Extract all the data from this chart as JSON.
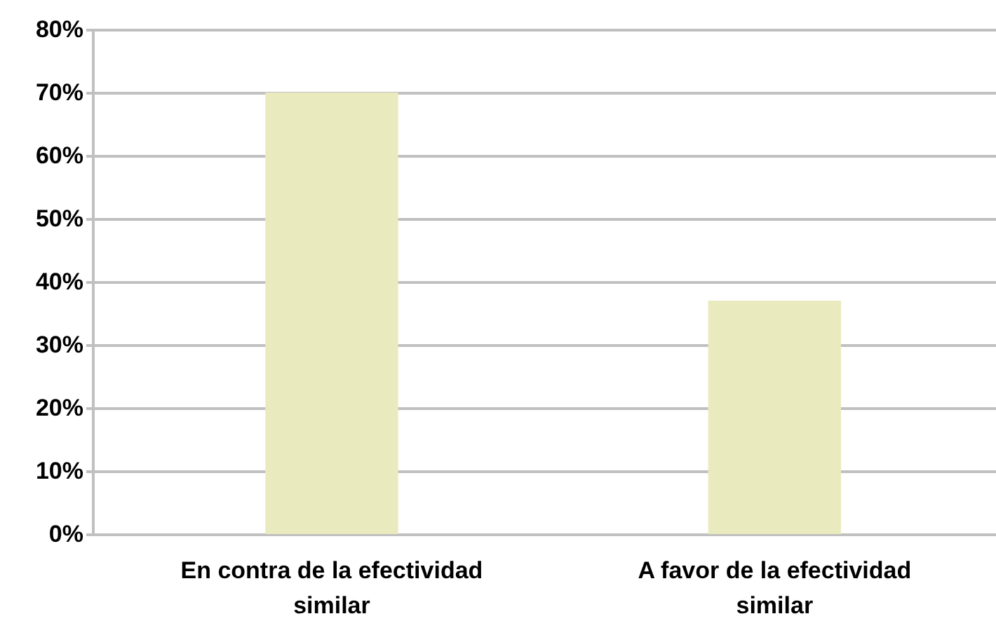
{
  "chart_data": {
    "type": "bar",
    "categories": [
      "En contra de la efectividad similar",
      "A favor de la efectividad similar"
    ],
    "values": [
      70,
      37
    ],
    "color": "#eaeabf",
    "ylim": [
      0,
      80
    ],
    "yticks": [
      {
        "value": 0,
        "label": "0%"
      },
      {
        "value": 10,
        "label": "10%"
      },
      {
        "value": 20,
        "label": "20%"
      },
      {
        "value": 30,
        "label": "30%"
      },
      {
        "value": 40,
        "label": "40%"
      },
      {
        "value": 50,
        "label": "50%"
      },
      {
        "value": 60,
        "label": "60%"
      },
      {
        "value": 70,
        "label": "70%"
      },
      {
        "value": 80,
        "label": "80%"
      }
    ],
    "grid": "y"
  }
}
